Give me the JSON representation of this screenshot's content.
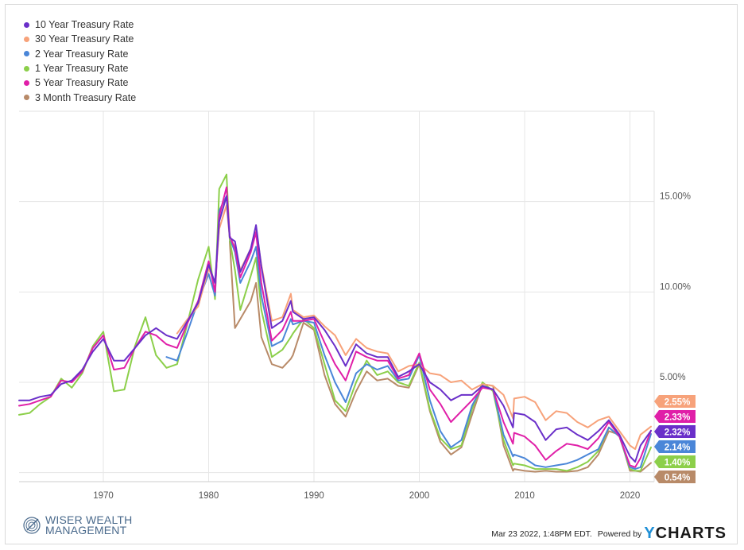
{
  "chart_data": {
    "type": "line",
    "title": "",
    "xlabel": "",
    "ylabel": "",
    "x_range": [
      1962,
      2022.3
    ],
    "ylim": [
      -0.5,
      20
    ],
    "x_ticks": [
      1970,
      1980,
      1990,
      2000,
      2010,
      2020
    ],
    "y_ticks": [
      5,
      10,
      15
    ],
    "y_tick_labels": [
      "5.00%",
      "10.00%",
      "15.00%"
    ],
    "x_tick_labels": [
      "1970",
      "1980",
      "1990",
      "2000",
      "2010",
      "2020"
    ],
    "grid": true,
    "legend_position": "top-left",
    "series": [
      {
        "name": "10 Year Treasury Rate",
        "color": "#6a2fc9",
        "end_label": "2.32%",
        "x": [
          1962,
          1963,
          1964,
          1965,
          1966,
          1967,
          1968,
          1969,
          1970,
          1971,
          1972,
          1973,
          1974,
          1975,
          1976,
          1977,
          1978,
          1979,
          1980,
          1980.6,
          1981,
          1981.7,
          1982,
          1982.5,
          1983,
          1984,
          1984.5,
          1985,
          1986,
          1987,
          1987.8,
          1988,
          1989,
          1990,
          1991,
          1992,
          1993,
          1994,
          1995,
          1996,
          1997,
          1998,
          1999,
          2000,
          2001,
          2002,
          2003,
          2004,
          2005,
          2006,
          2007,
          2008,
          2008.9,
          2009,
          2010,
          2011,
          2012,
          2013,
          2014,
          2015,
          2016,
          2017,
          2018,
          2019,
          2020,
          2020.5,
          2021,
          2022
        ],
        "values": [
          4.0,
          4.0,
          4.2,
          4.3,
          4.9,
          5.1,
          5.7,
          6.7,
          7.4,
          6.2,
          6.2,
          6.9,
          7.6,
          8.0,
          7.6,
          7.4,
          8.4,
          9.4,
          11.5,
          10.5,
          13.9,
          15.3,
          13.0,
          12.8,
          11.1,
          12.4,
          13.7,
          11.4,
          8.0,
          8.4,
          9.5,
          8.9,
          8.5,
          8.6,
          7.9,
          7.0,
          5.9,
          7.1,
          6.6,
          6.4,
          6.4,
          5.3,
          5.6,
          6.0,
          5.0,
          4.6,
          4.0,
          4.3,
          4.3,
          4.8,
          4.6,
          3.7,
          2.5,
          3.3,
          3.2,
          2.8,
          1.8,
          2.4,
          2.5,
          2.1,
          1.8,
          2.3,
          2.9,
          2.1,
          0.9,
          0.6,
          1.5,
          2.32
        ]
      },
      {
        "name": "30 Year Treasury Rate",
        "color": "#f7a27a",
        "end_label": "2.55%",
        "x": [
          1977,
          1978,
          1979,
          1980,
          1980.6,
          1981,
          1981.7,
          1982,
          1982.5,
          1983,
          1984,
          1984.5,
          1985,
          1986,
          1987,
          1987.8,
          1988,
          1989,
          1990,
          1991,
          1992,
          1993,
          1994,
          1995,
          1996,
          1997,
          1998,
          1999,
          2000,
          2001,
          2002,
          2003,
          2004,
          2005,
          2006,
          2007,
          2008,
          2008.9,
          2009,
          2010,
          2011,
          2012,
          2013,
          2014,
          2015,
          2016,
          2017,
          2018,
          2019,
          2020,
          2020.5,
          2021,
          2022
        ],
        "values": [
          7.7,
          8.5,
          9.2,
          11.3,
          10.5,
          13.5,
          14.8,
          13.0,
          12.5,
          11.2,
          12.4,
          13.5,
          11.5,
          8.4,
          8.6,
          9.9,
          9.0,
          8.6,
          8.7,
          8.1,
          7.6,
          6.5,
          7.4,
          6.9,
          6.7,
          6.6,
          5.6,
          5.9,
          6.0,
          5.5,
          5.4,
          5.0,
          5.1,
          4.6,
          4.9,
          4.8,
          4.3,
          3.0,
          4.1,
          4.2,
          3.9,
          2.9,
          3.4,
          3.3,
          2.8,
          2.5,
          2.9,
          3.1,
          2.3,
          1.5,
          1.3,
          2.1,
          2.55
        ]
      },
      {
        "name": "2 Year Treasury Rate",
        "color": "#4a86d8",
        "end_label": "2.14%",
        "x": [
          1976,
          1977,
          1978,
          1979,
          1980,
          1980.6,
          1981,
          1981.7,
          1982,
          1982.5,
          1983,
          1984,
          1984.5,
          1985,
          1986,
          1987,
          1987.8,
          1988,
          1989,
          1990,
          1991,
          1992,
          1993,
          1994,
          1995,
          1996,
          1997,
          1998,
          1999,
          2000,
          2001,
          2002,
          2003,
          2004,
          2005,
          2006,
          2007,
          2008,
          2008.9,
          2009,
          2010,
          2011,
          2012,
          2013,
          2014,
          2015,
          2016,
          2017,
          2018,
          2019,
          2020,
          2020.5,
          2021,
          2022
        ],
        "values": [
          6.4,
          6.2,
          7.8,
          9.5,
          11.0,
          9.8,
          14.5,
          15.3,
          13.0,
          12.2,
          10.5,
          11.7,
          12.5,
          9.8,
          7.0,
          7.3,
          8.5,
          8.2,
          8.4,
          8.3,
          6.5,
          5.0,
          3.9,
          5.5,
          6.0,
          5.7,
          5.9,
          5.1,
          5.2,
          6.5,
          4.0,
          2.3,
          1.4,
          1.8,
          3.7,
          4.8,
          4.6,
          2.1,
          0.9,
          1.0,
          0.8,
          0.4,
          0.3,
          0.4,
          0.5,
          0.7,
          1.0,
          1.3,
          2.5,
          2.0,
          0.3,
          0.2,
          0.3,
          2.14
        ]
      },
      {
        "name": "1 Year Treasury Rate",
        "color": "#8ccf4a",
        "end_label": "1.40%",
        "x": [
          1962,
          1963,
          1964,
          1965,
          1966,
          1967,
          1968,
          1969,
          1970,
          1971,
          1972,
          1973,
          1974,
          1975,
          1976,
          1977,
          1978,
          1979,
          1980,
          1980.6,
          1981,
          1981.7,
          1982,
          1982.5,
          1983,
          1984,
          1984.5,
          1985,
          1986,
          1987,
          1987.8,
          1988,
          1989,
          1990,
          1991,
          1992,
          1993,
          1994,
          1995,
          1996,
          1997,
          1998,
          1999,
          2000,
          2001,
          2002,
          2003,
          2004,
          2005,
          2006,
          2007,
          2008,
          2008.9,
          2009,
          2010,
          2011,
          2012,
          2013,
          2014,
          2015,
          2016,
          2017,
          2018,
          2019,
          2020,
          2020.5,
          2021,
          2022
        ],
        "values": [
          3.2,
          3.3,
          3.8,
          4.2,
          5.2,
          4.7,
          5.5,
          7.0,
          7.8,
          4.5,
          4.6,
          7.0,
          8.6,
          6.5,
          5.8,
          6.0,
          8.3,
          10.7,
          12.5,
          9.6,
          15.7,
          16.5,
          12.9,
          11.2,
          9.0,
          10.9,
          11.9,
          9.0,
          6.4,
          6.8,
          7.5,
          7.7,
          8.5,
          8.0,
          6.0,
          4.0,
          3.4,
          5.0,
          6.2,
          5.4,
          5.6,
          5.0,
          4.8,
          6.1,
          3.5,
          1.9,
          1.3,
          1.5,
          3.5,
          5.0,
          4.5,
          1.8,
          0.4,
          0.5,
          0.4,
          0.2,
          0.2,
          0.2,
          0.1,
          0.3,
          0.6,
          1.2,
          2.5,
          2.0,
          0.2,
          0.1,
          0.1,
          1.4
        ]
      },
      {
        "name": "5 Year Treasury Rate",
        "color": "#e01fa8",
        "end_label": "2.33%",
        "x": [
          1962,
          1963,
          1964,
          1965,
          1966,
          1967,
          1968,
          1969,
          1970,
          1971,
          1972,
          1973,
          1974,
          1975,
          1976,
          1977,
          1978,
          1979,
          1980,
          1980.6,
          1981,
          1981.7,
          1982,
          1982.5,
          1983,
          1984,
          1984.5,
          1985,
          1986,
          1987,
          1987.8,
          1988,
          1989,
          1990,
          1991,
          1992,
          1993,
          1994,
          1995,
          1996,
          1997,
          1998,
          1999,
          2000,
          2001,
          2002,
          2003,
          2004,
          2005,
          2006,
          2007,
          2008,
          2008.9,
          2009,
          2010,
          2011,
          2012,
          2013,
          2014,
          2015,
          2016,
          2017,
          2018,
          2019,
          2020,
          2020.5,
          2021,
          2022
        ],
        "values": [
          3.7,
          3.8,
          4.0,
          4.2,
          5.1,
          5.0,
          5.6,
          6.9,
          7.6,
          5.7,
          5.8,
          6.9,
          7.8,
          7.6,
          7.1,
          6.9,
          8.3,
          9.5,
          11.7,
          10.0,
          14.2,
          15.8,
          13.1,
          12.4,
          10.8,
          12.2,
          13.3,
          10.5,
          7.3,
          7.9,
          8.9,
          8.4,
          8.4,
          8.5,
          7.2,
          6.0,
          5.1,
          6.7,
          6.4,
          6.2,
          6.2,
          5.2,
          5.4,
          6.6,
          4.6,
          3.8,
          2.8,
          3.4,
          4.0,
          4.7,
          4.6,
          2.8,
          1.6,
          2.2,
          2.0,
          1.5,
          0.7,
          1.2,
          1.6,
          1.5,
          1.3,
          1.9,
          2.8,
          2.0,
          0.4,
          0.3,
          0.8,
          2.33
        ]
      },
      {
        "name": "3 Month Treasury Rate",
        "color": "#b88a68",
        "end_label": "0.54%",
        "x": [
          1982,
          1982.5,
          1983,
          1984,
          1984.5,
          1985,
          1986,
          1987,
          1987.8,
          1988,
          1989,
          1990,
          1991,
          1992,
          1993,
          1994,
          1995,
          1996,
          1997,
          1998,
          1999,
          2000,
          2001,
          2002,
          2003,
          2004,
          2005,
          2006,
          2007,
          2008,
          2008.9,
          2009,
          2010,
          2011,
          2012,
          2013,
          2014,
          2015,
          2016,
          2017,
          2018,
          2019,
          2020,
          2020.5,
          2021,
          2022
        ],
        "values": [
          12.8,
          8.0,
          8.5,
          9.5,
          10.5,
          7.5,
          6.0,
          5.8,
          6.3,
          6.5,
          8.3,
          7.9,
          5.4,
          3.8,
          3.1,
          4.5,
          5.6,
          5.1,
          5.2,
          4.8,
          4.7,
          6.0,
          3.4,
          1.7,
          1.0,
          1.4,
          3.2,
          4.9,
          4.8,
          1.5,
          0.1,
          0.2,
          0.1,
          0.05,
          0.1,
          0.05,
          0.05,
          0.1,
          0.3,
          1.0,
          2.3,
          2.1,
          0.1,
          0.1,
          0.05,
          0.54
        ]
      }
    ]
  },
  "logo": {
    "line1": "WISER WEALTH",
    "line2": "MANAGEMENT"
  },
  "footer": {
    "timestamp": "Mar 23 2022, 1:48PM EDT.",
    "powered_by": "Powered by",
    "brand_y": "Y",
    "brand_rest": "CHARTS"
  }
}
